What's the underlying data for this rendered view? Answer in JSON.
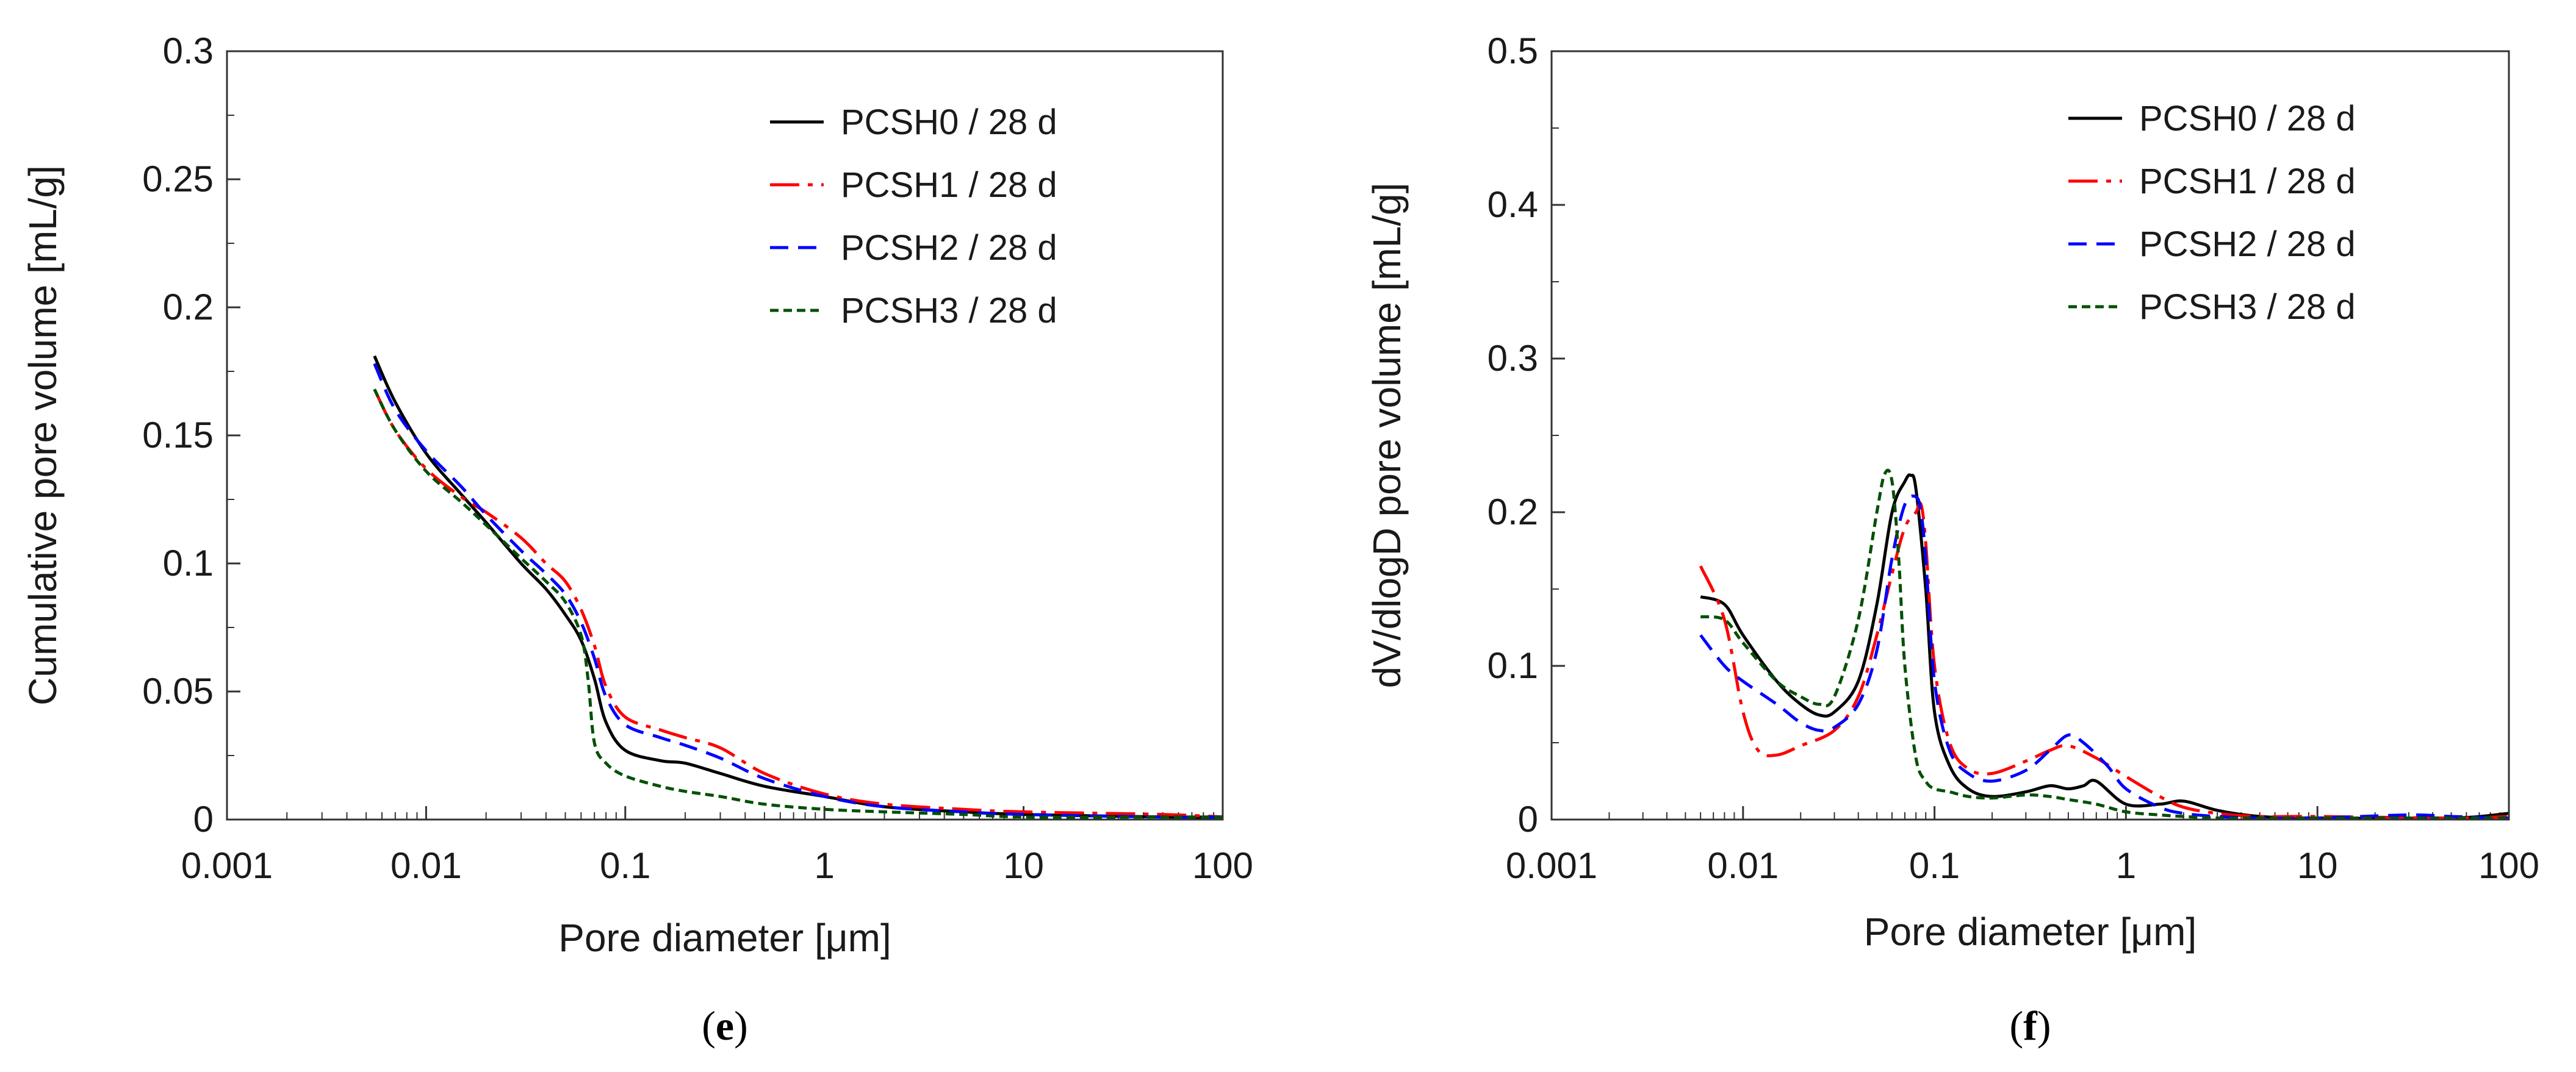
{
  "chart_data": [
    {
      "type": "line",
      "panel": "e",
      "caption_open": "(",
      "caption_letter": "e",
      "caption_close": ")",
      "xlabel": "Pore diameter [μm]",
      "ylabel": "Cumulative pore  volume [mL/g]",
      "xscale": "log",
      "xlim": [
        0.001,
        100
      ],
      "ylim": [
        0,
        0.3
      ],
      "xticks": [
        0.001,
        0.01,
        0.1,
        1,
        10,
        100
      ],
      "xtick_labels": [
        "0.001",
        "0.01",
        "0.1",
        "1",
        "10",
        "100"
      ],
      "yticks": [
        0,
        0.05,
        0.1,
        0.15,
        0.2,
        0.25,
        0.3
      ],
      "ytick_labels": [
        "0",
        "0.05",
        "0.1",
        "0.15",
        "0.2",
        "0.25",
        "0.3"
      ],
      "legend_position": "top-right",
      "series": [
        {
          "name": "PCSH0 / 28 d",
          "color": "#000000",
          "dash": "solid",
          "x": [
            0.0055,
            0.007,
            0.01,
            0.015,
            0.02,
            0.03,
            0.04,
            0.05,
            0.06,
            0.07,
            0.08,
            0.1,
            0.15,
            0.2,
            0.3,
            0.5,
            1,
            2,
            5,
            10,
            50,
            100
          ],
          "y": [
            0.181,
            0.163,
            0.143,
            0.127,
            0.116,
            0.1,
            0.09,
            0.08,
            0.07,
            0.055,
            0.038,
            0.027,
            0.023,
            0.022,
            0.018,
            0.013,
            0.009,
            0.005,
            0.003,
            0.002,
            0.001,
            0.001
          ]
        },
        {
          "name": "PCSH1 / 28 d",
          "color": "#ff0000",
          "dash": "dashdot",
          "x": [
            0.0055,
            0.007,
            0.01,
            0.015,
            0.02,
            0.03,
            0.04,
            0.05,
            0.06,
            0.07,
            0.08,
            0.1,
            0.15,
            0.2,
            0.3,
            0.5,
            1,
            2,
            5,
            10,
            50,
            100
          ],
          "y": [
            0.168,
            0.152,
            0.137,
            0.126,
            0.12,
            0.11,
            0.1,
            0.093,
            0.082,
            0.068,
            0.052,
            0.04,
            0.035,
            0.032,
            0.028,
            0.018,
            0.01,
            0.006,
            0.004,
            0.003,
            0.002,
            0.001
          ]
        },
        {
          "name": "PCSH2 / 28 d",
          "color": "#0000ff",
          "dash": "dashed",
          "x": [
            0.0055,
            0.007,
            0.01,
            0.015,
            0.02,
            0.03,
            0.04,
            0.05,
            0.06,
            0.07,
            0.08,
            0.1,
            0.15,
            0.2,
            0.3,
            0.5,
            1,
            2,
            5,
            10,
            50,
            100
          ],
          "y": [
            0.178,
            0.16,
            0.144,
            0.13,
            0.119,
            0.105,
            0.096,
            0.088,
            0.077,
            0.063,
            0.048,
            0.037,
            0.032,
            0.029,
            0.024,
            0.016,
            0.009,
            0.005,
            0.003,
            0.002,
            0.001,
            0.001
          ]
        },
        {
          "name": "PCSH3 / 28 d",
          "color": "#005000",
          "dash": "dotted",
          "x": [
            0.0055,
            0.007,
            0.01,
            0.015,
            0.02,
            0.03,
            0.04,
            0.05,
            0.06,
            0.065,
            0.07,
            0.08,
            0.1,
            0.15,
            0.2,
            0.3,
            0.5,
            1,
            2,
            5,
            10,
            50,
            100
          ],
          "y": [
            0.168,
            0.152,
            0.136,
            0.124,
            0.115,
            0.102,
            0.093,
            0.085,
            0.072,
            0.055,
            0.03,
            0.022,
            0.017,
            0.013,
            0.011,
            0.009,
            0.006,
            0.004,
            0.003,
            0.002,
            0.001,
            0.001,
            0.001
          ]
        }
      ]
    },
    {
      "type": "line",
      "panel": "f",
      "caption_open": "(",
      "caption_letter": "f",
      "caption_close": ")",
      "xlabel": "Pore diameter [μm]",
      "ylabel": "dV/dlogD pore volume [mL/g]",
      "xscale": "log",
      "xlim": [
        0.001,
        100
      ],
      "ylim": [
        0,
        0.5
      ],
      "xticks": [
        0.001,
        0.01,
        0.1,
        1,
        10,
        100
      ],
      "xtick_labels": [
        "0.001",
        "0.01",
        "0.1",
        "1",
        "10",
        "100"
      ],
      "yticks": [
        0,
        0.1,
        0.2,
        0.3,
        0.4,
        0.5
      ],
      "ytick_labels": [
        "0",
        "0.1",
        "0.2",
        "0.3",
        "0.4",
        "0.5"
      ],
      "legend_position": "top-right",
      "series": [
        {
          "name": "PCSH0 / 28 d",
          "color": "#000000",
          "dash": "solid",
          "x": [
            0.006,
            0.008,
            0.01,
            0.015,
            0.02,
            0.025,
            0.03,
            0.04,
            0.05,
            0.06,
            0.07,
            0.075,
            0.08,
            0.09,
            0.1,
            0.12,
            0.15,
            0.2,
            0.3,
            0.4,
            0.5,
            0.6,
            0.7,
            1,
            1.5,
            2,
            3,
            5,
            10,
            50,
            100
          ],
          "y": [
            0.145,
            0.14,
            0.12,
            0.09,
            0.075,
            0.068,
            0.07,
            0.09,
            0.14,
            0.2,
            0.22,
            0.224,
            0.215,
            0.15,
            0.07,
            0.035,
            0.02,
            0.015,
            0.018,
            0.022,
            0.02,
            0.022,
            0.025,
            0.01,
            0.01,
            0.012,
            0.006,
            0.002,
            0.001,
            0.001,
            0.004
          ]
        },
        {
          "name": "PCSH1 / 28 d",
          "color": "#ff0000",
          "dash": "dashdot",
          "x": [
            0.006,
            0.008,
            0.01,
            0.012,
            0.015,
            0.02,
            0.03,
            0.04,
            0.05,
            0.06,
            0.07,
            0.08,
            0.085,
            0.09,
            0.1,
            0.12,
            0.15,
            0.2,
            0.3,
            0.4,
            0.5,
            0.7,
            1,
            1.5,
            2,
            3,
            5,
            10,
            50,
            100
          ],
          "y": [
            0.165,
            0.13,
            0.07,
            0.045,
            0.042,
            0.048,
            0.058,
            0.08,
            0.12,
            0.16,
            0.19,
            0.2,
            0.205,
            0.18,
            0.1,
            0.05,
            0.033,
            0.03,
            0.038,
            0.045,
            0.048,
            0.04,
            0.028,
            0.015,
            0.008,
            0.004,
            0.002,
            0.002,
            0.001,
            0.002
          ]
        },
        {
          "name": "PCSH2 / 28 d",
          "color": "#0000ff",
          "dash": "dashed",
          "x": [
            0.006,
            0.008,
            0.01,
            0.015,
            0.02,
            0.025,
            0.03,
            0.04,
            0.05,
            0.06,
            0.07,
            0.08,
            0.085,
            0.09,
            0.1,
            0.12,
            0.15,
            0.2,
            0.3,
            0.4,
            0.5,
            0.6,
            0.8,
            1,
            1.5,
            2,
            3,
            5,
            10,
            30,
            50,
            100
          ],
          "y": [
            0.12,
            0.1,
            0.09,
            0.075,
            0.063,
            0.058,
            0.06,
            0.075,
            0.11,
            0.17,
            0.205,
            0.21,
            0.2,
            0.17,
            0.09,
            0.045,
            0.03,
            0.025,
            0.032,
            0.045,
            0.055,
            0.05,
            0.035,
            0.02,
            0.008,
            0.004,
            0.002,
            0.001,
            0.001,
            0.003,
            0.002,
            0.001
          ]
        },
        {
          "name": "PCSH3 / 28 d",
          "color": "#005000",
          "dash": "dotted",
          "x": [
            0.006,
            0.008,
            0.01,
            0.015,
            0.02,
            0.025,
            0.03,
            0.04,
            0.05,
            0.055,
            0.06,
            0.065,
            0.07,
            0.08,
            0.09,
            0.1,
            0.12,
            0.15,
            0.2,
            0.3,
            0.4,
            0.5,
            0.7,
            1,
            1.5,
            2,
            3,
            5,
            10,
            50,
            100
          ],
          "y": [
            0.132,
            0.13,
            0.115,
            0.09,
            0.08,
            0.075,
            0.08,
            0.13,
            0.2,
            0.225,
            0.22,
            0.17,
            0.1,
            0.04,
            0.025,
            0.02,
            0.018,
            0.015,
            0.014,
            0.016,
            0.015,
            0.013,
            0.01,
            0.005,
            0.003,
            0.002,
            0.001,
            0.001,
            0.001,
            0.001,
            0.001
          ]
        }
      ]
    }
  ]
}
